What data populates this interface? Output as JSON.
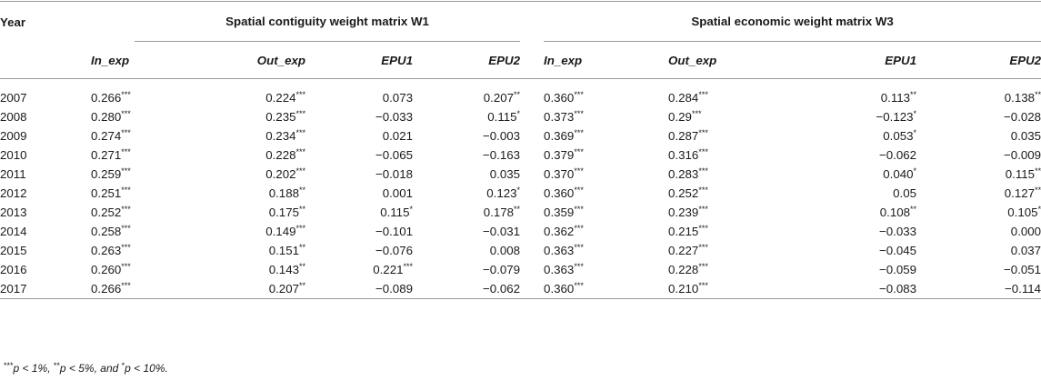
{
  "header": {
    "year_label": "Year",
    "group1": "Spatial contiguity weight matrix W1",
    "group2": "Spatial economic weight matrix W3",
    "columns": [
      "In_exp",
      "Out_exp",
      "EPU1",
      "EPU2",
      "In_exp",
      "Out_exp",
      "EPU1",
      "EPU2"
    ]
  },
  "rows": [
    {
      "year": "2007",
      "cells": [
        {
          "v": "0.266",
          "s": "***"
        },
        {
          "v": "0.224",
          "s": "***"
        },
        {
          "v": "0.073",
          "s": ""
        },
        {
          "v": "0.207",
          "s": "**"
        },
        {
          "v": "0.360",
          "s": "***"
        },
        {
          "v": "0.284",
          "s": "***"
        },
        {
          "v": "0.113",
          "s": "**"
        },
        {
          "v": "0.138",
          "s": "**"
        }
      ]
    },
    {
      "year": "2008",
      "cells": [
        {
          "v": "0.280",
          "s": "***"
        },
        {
          "v": "0.235",
          "s": "***"
        },
        {
          "v": "−0.033",
          "s": ""
        },
        {
          "v": "0.115",
          "s": "*"
        },
        {
          "v": "0.373",
          "s": "***"
        },
        {
          "v": "0.29",
          "s": "***"
        },
        {
          "v": "−0.123",
          "s": "*"
        },
        {
          "v": "−0.028",
          "s": ""
        }
      ]
    },
    {
      "year": "2009",
      "cells": [
        {
          "v": "0.274",
          "s": "***"
        },
        {
          "v": "0.234",
          "s": "***"
        },
        {
          "v": "0.021",
          "s": ""
        },
        {
          "v": "−0.003",
          "s": ""
        },
        {
          "v": "0.369",
          "s": "***"
        },
        {
          "v": "0.287",
          "s": "***"
        },
        {
          "v": "0.053",
          "s": "*"
        },
        {
          "v": "0.035",
          "s": ""
        }
      ]
    },
    {
      "year": "2010",
      "cells": [
        {
          "v": "0.271",
          "s": "***"
        },
        {
          "v": "0.228",
          "s": "***"
        },
        {
          "v": "−0.065",
          "s": ""
        },
        {
          "v": "−0.163",
          "s": ""
        },
        {
          "v": "0.379",
          "s": "***"
        },
        {
          "v": "0.316",
          "s": "***"
        },
        {
          "v": "−0.062",
          "s": ""
        },
        {
          "v": "−0.009",
          "s": ""
        }
      ]
    },
    {
      "year": "2011",
      "cells": [
        {
          "v": "0.259",
          "s": "***"
        },
        {
          "v": "0.202",
          "s": "***"
        },
        {
          "v": "−0.018",
          "s": ""
        },
        {
          "v": "0.035",
          "s": ""
        },
        {
          "v": "0.370",
          "s": "***"
        },
        {
          "v": "0.283",
          "s": "***"
        },
        {
          "v": "0.040",
          "s": "*"
        },
        {
          "v": "0.115",
          "s": "**"
        }
      ]
    },
    {
      "year": "2012",
      "cells": [
        {
          "v": "0.251",
          "s": "***"
        },
        {
          "v": "0.188",
          "s": "**"
        },
        {
          "v": "0.001",
          "s": ""
        },
        {
          "v": "0.123",
          "s": "*"
        },
        {
          "v": "0.360",
          "s": "***"
        },
        {
          "v": "0.252",
          "s": "***"
        },
        {
          "v": "0.05",
          "s": ""
        },
        {
          "v": "0.127",
          "s": "**"
        }
      ]
    },
    {
      "year": "2013",
      "cells": [
        {
          "v": "0.252",
          "s": "***"
        },
        {
          "v": "0.175",
          "s": "**"
        },
        {
          "v": "0.115",
          "s": "*"
        },
        {
          "v": "0.178",
          "s": "**"
        },
        {
          "v": "0.359",
          "s": "***"
        },
        {
          "v": "0.239",
          "s": "***"
        },
        {
          "v": "0.108",
          "s": "**"
        },
        {
          "v": "0.105",
          "s": "*"
        }
      ]
    },
    {
      "year": "2014",
      "cells": [
        {
          "v": "0.258",
          "s": "***"
        },
        {
          "v": "0.149",
          "s": "***"
        },
        {
          "v": "−0.101",
          "s": ""
        },
        {
          "v": "−0.031",
          "s": ""
        },
        {
          "v": "0.362",
          "s": "***"
        },
        {
          "v": "0.215",
          "s": "***"
        },
        {
          "v": "−0.033",
          "s": ""
        },
        {
          "v": "0.000",
          "s": ""
        }
      ]
    },
    {
      "year": "2015",
      "cells": [
        {
          "v": "0.263",
          "s": "***"
        },
        {
          "v": "0.151",
          "s": "**"
        },
        {
          "v": "−0.076",
          "s": ""
        },
        {
          "v": "0.008",
          "s": ""
        },
        {
          "v": "0.363",
          "s": "***"
        },
        {
          "v": "0.227",
          "s": "***"
        },
        {
          "v": "−0.045",
          "s": ""
        },
        {
          "v": "0.037",
          "s": ""
        }
      ]
    },
    {
      "year": "2016",
      "cells": [
        {
          "v": "0.260",
          "s": "***"
        },
        {
          "v": "0.143",
          "s": "**"
        },
        {
          "v": "0.221",
          "s": "***"
        },
        {
          "v": "−0.079",
          "s": ""
        },
        {
          "v": "0.363",
          "s": "***"
        },
        {
          "v": "0.228",
          "s": "***"
        },
        {
          "v": "−0.059",
          "s": ""
        },
        {
          "v": "−0.051",
          "s": ""
        }
      ]
    },
    {
      "year": "2017",
      "cells": [
        {
          "v": "0.266",
          "s": "***"
        },
        {
          "v": "0.207",
          "s": "**"
        },
        {
          "v": "−0.089",
          "s": ""
        },
        {
          "v": "−0.062",
          "s": ""
        },
        {
          "v": "0.360",
          "s": "***"
        },
        {
          "v": "0.210",
          "s": "***"
        },
        {
          "v": "−0.083",
          "s": ""
        },
        {
          "v": "−0.114",
          "s": ""
        }
      ]
    }
  ],
  "footnote": {
    "s1": "***",
    "t1": "p < 1%, ",
    "s2": "**",
    "t2": "p < 5%, and ",
    "s3": "*",
    "t3": "p < 10%."
  }
}
